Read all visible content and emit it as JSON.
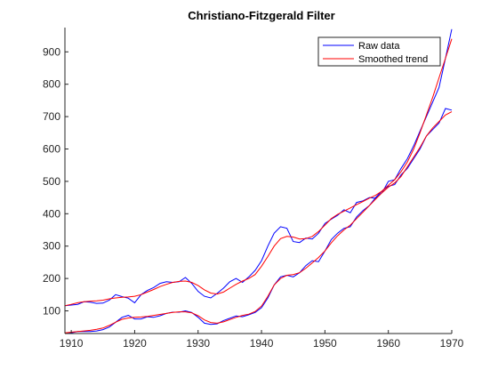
{
  "figure": {
    "background": "#ffffff"
  },
  "chart_data": {
    "type": "line",
    "title": "Christiano-Fitzgerald  Filter",
    "xlabel": "",
    "ylabel": "",
    "xlim": [
      1909,
      1970
    ],
    "ylim": [
      30,
      975
    ],
    "xticks": [
      1910,
      1920,
      1930,
      1940,
      1950,
      1960,
      1970
    ],
    "yticks": [
      100,
      200,
      300,
      400,
      500,
      600,
      700,
      800,
      900
    ],
    "grid": false,
    "legend": {
      "location": "top-right",
      "entries": [
        "Raw data",
        "Smoothed trend"
      ]
    },
    "series": [
      {
        "name": "Raw data",
        "color": "#0000ff",
        "groups": [
          {
            "x": [
              1909,
              1910,
              1911,
              1912,
              1913,
              1914,
              1915,
              1916,
              1917,
              1918,
              1919,
              1920,
              1921,
              1922,
              1923,
              1924,
              1925,
              1926,
              1927,
              1928,
              1929,
              1930,
              1931,
              1932,
              1933,
              1934,
              1935,
              1936,
              1937,
              1938,
              1939,
              1940,
              1941,
              1942,
              1943,
              1944,
              1945,
              1946,
              1947,
              1948,
              1949,
              1950,
              1951,
              1952,
              1953,
              1954,
              1955,
              1956,
              1957,
              1958,
              1959,
              1960,
              1961,
              1962,
              1963,
              1964,
              1965,
              1966,
              1967,
              1968,
              1969,
              1970
            ],
            "y": [
              116,
              118,
              120,
              128,
              127,
              123,
              124,
              133,
              150,
              144,
              139,
              125,
              150,
              163,
              172,
              185,
              190,
              188,
              190,
              203,
              185,
              160,
              145,
              140,
              154,
              170,
              190,
              200,
              188,
              205,
              225,
              255,
              300,
              340,
              360,
              355,
              314,
              311,
              325,
              322,
              340,
              370,
              383,
              395,
              412,
              403,
              435,
              440,
              450,
              448,
              465,
              500,
              505,
              540,
              570,
              610,
              655,
              700,
              745,
              790,
              880,
              970
            ]
          },
          {
            "x": [
              1909,
              1910,
              1911,
              1912,
              1913,
              1914,
              1915,
              1916,
              1917,
              1918,
              1919,
              1920,
              1921,
              1922,
              1923,
              1924,
              1925,
              1926,
              1927,
              1928,
              1929,
              1930,
              1931,
              1932,
              1933,
              1934,
              1935,
              1936,
              1937,
              1938,
              1939,
              1940,
              1941,
              1942,
              1943,
              1944,
              1945,
              1946,
              1947,
              1948,
              1949,
              1950,
              1951,
              1952,
              1953,
              1954,
              1955,
              1956,
              1957,
              1958,
              1959,
              1960,
              1961,
              1962,
              1963,
              1964,
              1965,
              1966,
              1967,
              1968,
              1969,
              1970
            ],
            "y": [
              30,
              32,
              36,
              36,
              36,
              38,
              42,
              50,
              65,
              80,
              86,
              75,
              75,
              82,
              80,
              85,
              92,
              96,
              96,
              100,
              95,
              80,
              62,
              58,
              60,
              70,
              77,
              84,
              82,
              88,
              95,
              110,
              140,
              180,
              205,
              210,
              205,
              218,
              240,
              255,
              252,
              285,
              320,
              340,
              355,
              360,
              390,
              410,
              425,
              450,
              470,
              485,
              490,
              520,
              540,
              570,
              600,
              640,
              660,
              680,
              725,
              720
            ]
          }
        ]
      },
      {
        "name": "Smoothed trend",
        "color": "#ff0000",
        "groups": [
          {
            "x": [
              1909,
              1910,
              1911,
              1912,
              1913,
              1914,
              1915,
              1916,
              1917,
              1918,
              1919,
              1920,
              1921,
              1922,
              1923,
              1924,
              1925,
              1926,
              1927,
              1928,
              1929,
              1930,
              1931,
              1932,
              1933,
              1934,
              1935,
              1936,
              1937,
              1938,
              1939,
              1940,
              1941,
              1942,
              1943,
              1944,
              1945,
              1946,
              1947,
              1948,
              1949,
              1950,
              1951,
              1952,
              1953,
              1954,
              1955,
              1956,
              1957,
              1958,
              1959,
              1960,
              1961,
              1962,
              1963,
              1964,
              1965,
              1966,
              1967,
              1968,
              1969,
              1970
            ],
            "y": [
              116,
              120,
              125,
              128,
              130,
              131,
              133,
              137,
              140,
              142,
              143,
              145,
              150,
              158,
              166,
              175,
              182,
              188,
              191,
              192,
              188,
              178,
              165,
              155,
              152,
              158,
              170,
              182,
              192,
              200,
              212,
              238,
              268,
              300,
              323,
              330,
              328,
              322,
              323,
              330,
              345,
              365,
              385,
              398,
              408,
              418,
              428,
              438,
              448,
              457,
              470,
              488,
              505,
              530,
              560,
              600,
              650,
              705,
              760,
              820,
              880,
              940
            ]
          },
          {
            "x": [
              1909,
              1910,
              1911,
              1912,
              1913,
              1914,
              1915,
              1916,
              1917,
              1918,
              1919,
              1920,
              1921,
              1922,
              1923,
              1924,
              1925,
              1926,
              1927,
              1928,
              1929,
              1930,
              1931,
              1932,
              1933,
              1934,
              1935,
              1936,
              1937,
              1938,
              1939,
              1940,
              1941,
              1942,
              1943,
              1944,
              1945,
              1946,
              1947,
              1948,
              1949,
              1950,
              1951,
              1952,
              1953,
              1954,
              1955,
              1956,
              1957,
              1958,
              1959,
              1960,
              1961,
              1962,
              1963,
              1964,
              1965,
              1966,
              1967,
              1968,
              1969,
              1970
            ],
            "y": [
              32,
              34,
              36,
              38,
              40,
              43,
              47,
              55,
              65,
              74,
              78,
              80,
              81,
              83,
              86,
              89,
              92,
              95,
              97,
              97,
              94,
              85,
              72,
              64,
              62,
              66,
              73,
              80,
              86,
              90,
              98,
              115,
              145,
              180,
              200,
              210,
              212,
              218,
              232,
              248,
              265,
              285,
              310,
              332,
              350,
              365,
              385,
              405,
              425,
              445,
              465,
              482,
              495,
              515,
              545,
              575,
              605,
              640,
              665,
              685,
              705,
              715
            ]
          }
        ]
      }
    ]
  }
}
